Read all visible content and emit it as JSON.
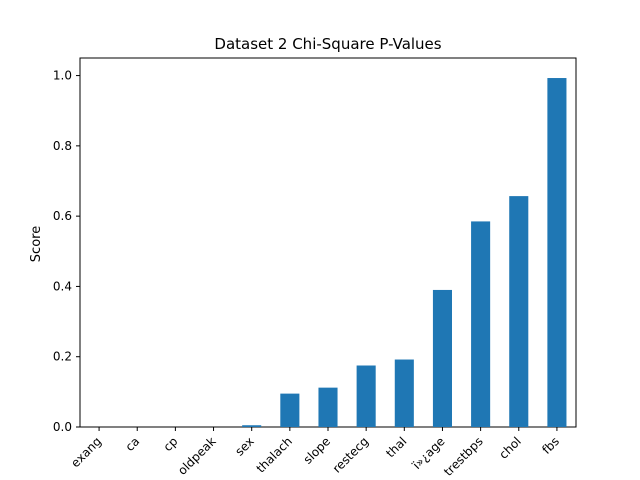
{
  "chart_data": {
    "type": "bar",
    "title": "Dataset 2 Chi-Square P-Values",
    "xlabel": "",
    "ylabel": "Score",
    "categories": [
      "exang",
      "ca",
      "cp",
      "oldpeak",
      "sex",
      "thalach",
      "slope",
      "restecg",
      "thal",
      "ï»¿age",
      "trestbps",
      "chol",
      "fbs"
    ],
    "values": [
      0.0,
      0.0,
      0.0,
      0.0,
      0.005,
      0.095,
      0.112,
      0.175,
      0.192,
      0.39,
      0.585,
      0.657,
      0.993
    ],
    "ylim": [
      0,
      1.05
    ],
    "yticks": [
      0.0,
      0.2,
      0.4,
      0.6,
      0.8,
      1.0
    ],
    "ytick_labels": [
      "0.0",
      "0.2",
      "0.4",
      "0.6",
      "0.8",
      "1.0"
    ],
    "bar_color": "#1f77b4",
    "grid": false,
    "legend": "none"
  }
}
